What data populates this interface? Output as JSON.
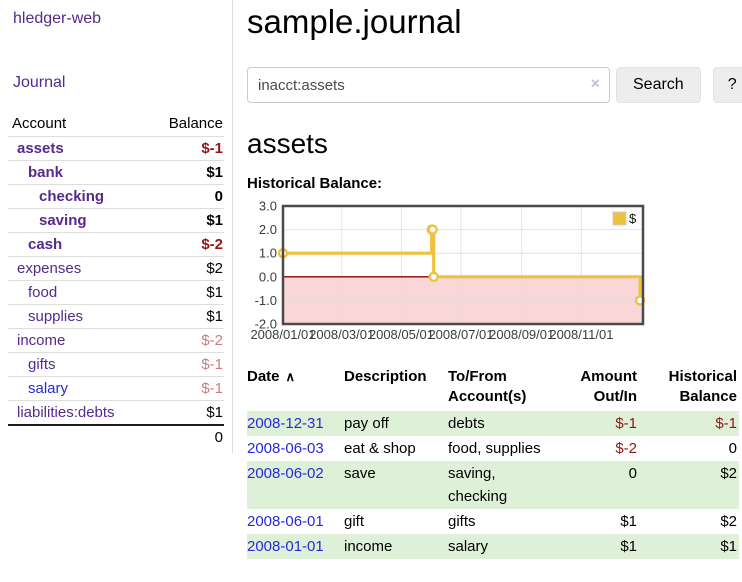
{
  "app": {
    "title": "hledger-web",
    "nav_journal": "Journal"
  },
  "colors": {
    "link_visited": "#552a8b",
    "link_unvisited": "#2929d6",
    "negative_strong": "#941616",
    "negative_muted": "#c97e7c",
    "row_highlight_green": "#dff0d8",
    "series_yellow": "#edc240",
    "negative_region_pink": "#fad7d7",
    "zero_line_red": "#8b0000"
  },
  "sidebar": {
    "columns": {
      "account": "Account",
      "balance": "Balance"
    },
    "accounts": [
      {
        "name": "assets",
        "level": 1,
        "bold": true,
        "balance": "$-1",
        "balance_style": "neg"
      },
      {
        "name": "bank",
        "level": 2,
        "bold": true,
        "balance": "$1",
        "balance_style": "pos"
      },
      {
        "name": "checking",
        "level": 3,
        "bold": true,
        "balance": "0",
        "balance_style": "pos"
      },
      {
        "name": "saving",
        "level": 3,
        "bold": true,
        "balance": "$1",
        "balance_style": "pos"
      },
      {
        "name": "cash",
        "level": 2,
        "bold": true,
        "balance": "$-2",
        "balance_style": "neg"
      },
      {
        "name": "expenses",
        "level": 1,
        "bold": false,
        "balance": "$2",
        "balance_style": "pos"
      },
      {
        "name": "food",
        "level": 2,
        "bold": false,
        "balance": "$1",
        "balance_style": "pos"
      },
      {
        "name": "supplies",
        "level": 2,
        "bold": false,
        "balance": "$1",
        "balance_style": "pos"
      },
      {
        "name": "income",
        "level": 1,
        "bold": false,
        "balance": "$-2",
        "balance_style": "neg-light"
      },
      {
        "name": "gifts",
        "level": 2,
        "bold": false,
        "balance": "$-1",
        "balance_style": "neg-light"
      },
      {
        "name": "salary",
        "level": 2,
        "bold": false,
        "balance": "$-1",
        "balance_style": "neg-light",
        "link_style": "unvisited"
      },
      {
        "name": "liabilities:debts",
        "level": 1,
        "bold": false,
        "balance": "$1",
        "balance_style": "pos"
      }
    ],
    "total": "0"
  },
  "header": {
    "title": "sample.journal"
  },
  "search": {
    "value": "inacct:assets",
    "clear_icon": "×",
    "button": "Search",
    "help_button": "?"
  },
  "account_page": {
    "title": "assets",
    "chart_label": "Historical Balance:"
  },
  "chart_data": {
    "type": "line",
    "title": "Historical Balance",
    "series": [
      {
        "name": "$",
        "color": "#edc240",
        "step": true,
        "markers": true,
        "points": [
          [
            "2008-01-01",
            1
          ],
          [
            "2008-06-01",
            2
          ],
          [
            "2008-06-02",
            2
          ],
          [
            "2008-06-03",
            0
          ],
          [
            "2008-12-31",
            -1
          ]
        ]
      }
    ],
    "yticks": [
      3.0,
      2.0,
      1.0,
      0.0,
      -1.0,
      -2.0
    ],
    "xticks": [
      "2008/01/01",
      "2008/03/01",
      "2008/05/01",
      "2008/07/01",
      "2008/09/01",
      "2008/11/01"
    ],
    "ylim": [
      -2,
      3
    ],
    "x_start": "2008-01-01",
    "x_span_days": 368,
    "grid": true,
    "legend_position": "top-right",
    "legend_label": "$",
    "negative_region_fill": "#fad7d7",
    "zero_line_color": "#8b0000",
    "grid_color": "#dcdcdc",
    "border_color": "#4a4a4a"
  },
  "register": {
    "sort_icon": "∧",
    "columns": [
      {
        "label": "Date",
        "align": "left",
        "sortable": true
      },
      {
        "label": "Description",
        "align": "left"
      },
      {
        "label": "To/From Account(s)",
        "align": "left"
      },
      {
        "label": "Amount Out/In",
        "align": "right"
      },
      {
        "label": "Historical Balance",
        "align": "right"
      }
    ],
    "rows": [
      {
        "date": "2008-12-31",
        "description": "pay off",
        "accounts": "debts",
        "amount": "$-1",
        "amount_style": "neg",
        "balance": "$-1",
        "balance_style": "neg"
      },
      {
        "date": "2008-06-03",
        "description": "eat & shop",
        "accounts": "food, supplies",
        "amount": "$-2",
        "amount_style": "neg",
        "balance": "0",
        "balance_style": "pos"
      },
      {
        "date": "2008-06-02",
        "description": "save",
        "accounts": "saving, checking",
        "amount": "0",
        "amount_style": "pos",
        "balance": "$2",
        "balance_style": "pos"
      },
      {
        "date": "2008-06-01",
        "description": "gift",
        "accounts": "gifts",
        "amount": "$1",
        "amount_style": "pos",
        "balance": "$2",
        "balance_style": "pos"
      },
      {
        "date": "2008-01-01",
        "description": "income",
        "accounts": "salary",
        "amount": "$1",
        "amount_style": "pos",
        "balance": "$1",
        "balance_style": "pos"
      }
    ]
  }
}
